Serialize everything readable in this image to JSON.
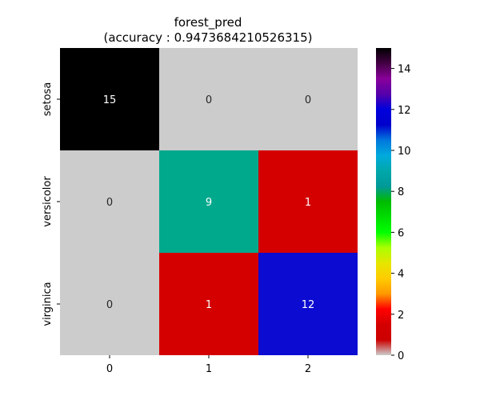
{
  "chart_data": {
    "type": "heatmap",
    "title_line1": "forest_pred",
    "title_line2": "(accuracy : 0.9473684210526315)",
    "row_labels": [
      "setosa",
      "versicolor",
      "virginica"
    ],
    "col_labels": [
      "0",
      "1",
      "2"
    ],
    "values": [
      [
        15,
        0,
        0
      ],
      [
        0,
        9,
        1
      ],
      [
        0,
        1,
        12
      ]
    ],
    "cell_colors": [
      [
        "#000000",
        "#cccccc",
        "#cccccc"
      ],
      [
        "#cccccc",
        "#00a88c",
        "#d40000"
      ],
      [
        "#cccccc",
        "#d40000",
        "#0b0bd1"
      ]
    ],
    "text_colors": [
      [
        "#ffffff",
        "#262626",
        "#262626"
      ],
      [
        "#262626",
        "#ffffff",
        "#ffffff"
      ],
      [
        "#262626",
        "#ffffff",
        "#ffffff"
      ]
    ],
    "colorbar": {
      "colormap": "nipy_spectral",
      "range": [
        0,
        15
      ],
      "ticks": [
        0,
        2,
        4,
        6,
        8,
        10,
        12,
        14
      ],
      "tick_labels": [
        "0",
        "2",
        "4",
        "6",
        "8",
        "10",
        "12",
        "14"
      ]
    },
    "xlabel": "",
    "ylabel": ""
  }
}
